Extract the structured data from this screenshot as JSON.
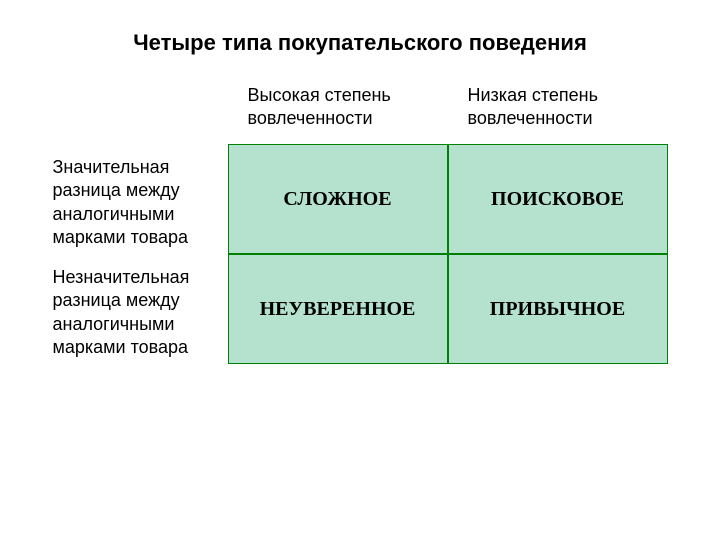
{
  "title": {
    "text": "Четыре типа покупательского поведения",
    "fontsize": 22,
    "color": "#000000"
  },
  "matrix": {
    "type": "table",
    "col_headers": [
      "Высокая степень вовлеченности",
      "Низкая степень вовлеченности"
    ],
    "row_headers": [
      "Значительная разница между аналогичными марками товара",
      "Незначительная разница между аналогичными марками товара"
    ],
    "cells": [
      [
        "СЛОЖНОЕ",
        "ПОИСКОВОЕ"
      ],
      [
        "НЕУВЕРЕННОЕ",
        "ПРИВЫЧНОЕ"
      ]
    ],
    "cell_bg": "#b4e2ce",
    "cell_border": "#008000",
    "cell_fontsize": 20,
    "header_fontsize": 18,
    "row_header_fontsize": 18,
    "background_color": "#ffffff"
  }
}
